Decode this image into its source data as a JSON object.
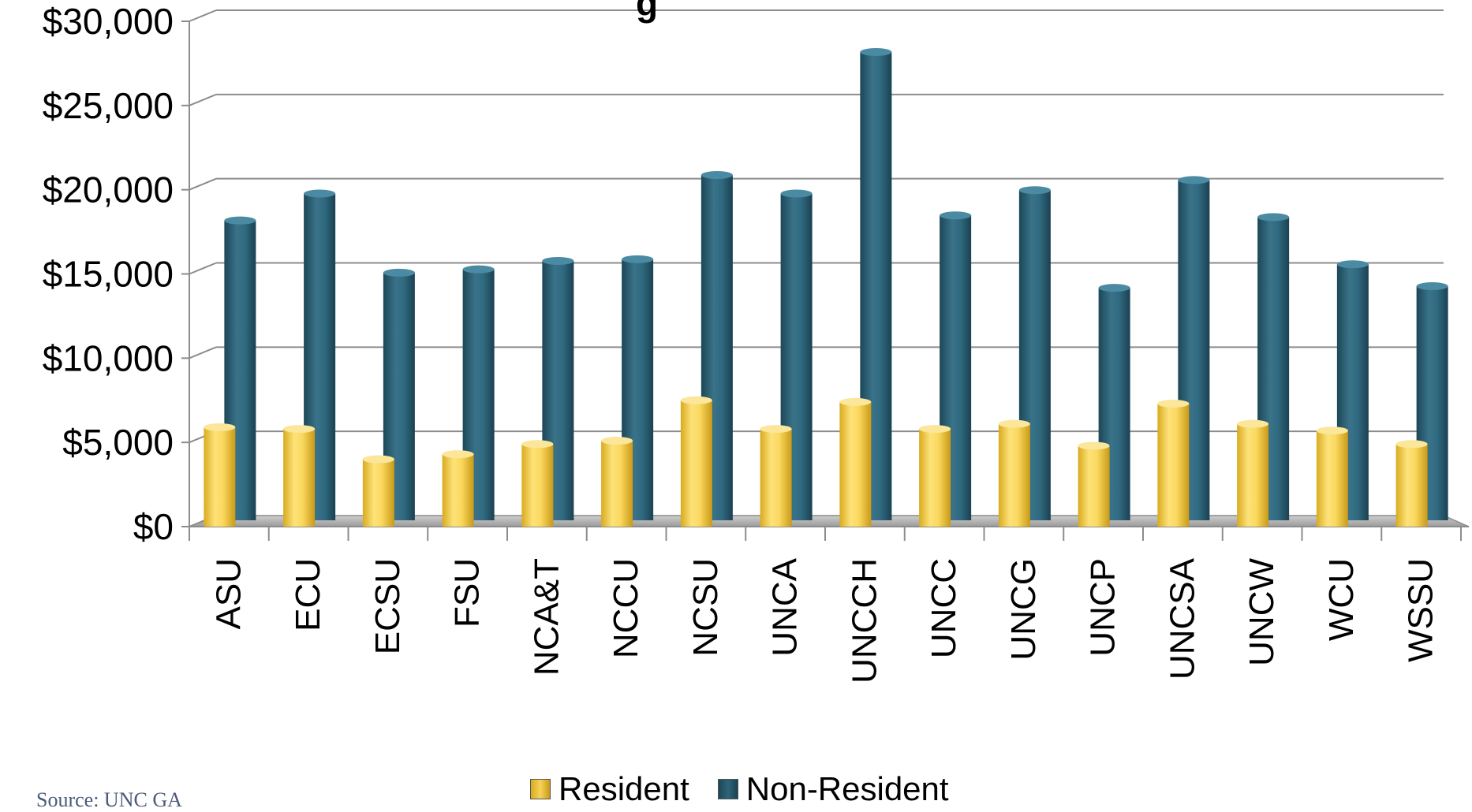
{
  "chart_data": {
    "type": "bar",
    "title": "g",
    "categories": [
      "ASU",
      "ECU",
      "ECSU",
      "FSU",
      "NCA&T",
      "NCCU",
      "NCSU",
      "UNCA",
      "UNCCH",
      "UNCC",
      "UNCG",
      "UNCP",
      "UNCSA",
      "UNCW",
      "WCU",
      "WSSU"
    ],
    "series": [
      {
        "name": "Resident",
        "color": "#f6d35a",
        "values": [
          5900,
          5800,
          4000,
          4300,
          4900,
          5100,
          7500,
          5800,
          7400,
          5800,
          6100,
          4800,
          7300,
          6100,
          5700,
          4900
        ]
      },
      {
        "name": "Non-Resident",
        "color": "#2e6478",
        "values": [
          17800,
          19400,
          14700,
          14900,
          15400,
          15500,
          20500,
          19400,
          27800,
          18100,
          19600,
          13800,
          20200,
          18000,
          15200,
          13900
        ]
      }
    ],
    "y_ticks": [
      "$0",
      "$5,000",
      "$10,000",
      "$15,000",
      "$20,000",
      "$25,000",
      "$30,000"
    ],
    "ylim": [
      0,
      30000
    ],
    "xlabel": "",
    "ylabel": "",
    "grid": true,
    "legend_position": "bottom"
  },
  "source_note": "Source: UNC GA"
}
